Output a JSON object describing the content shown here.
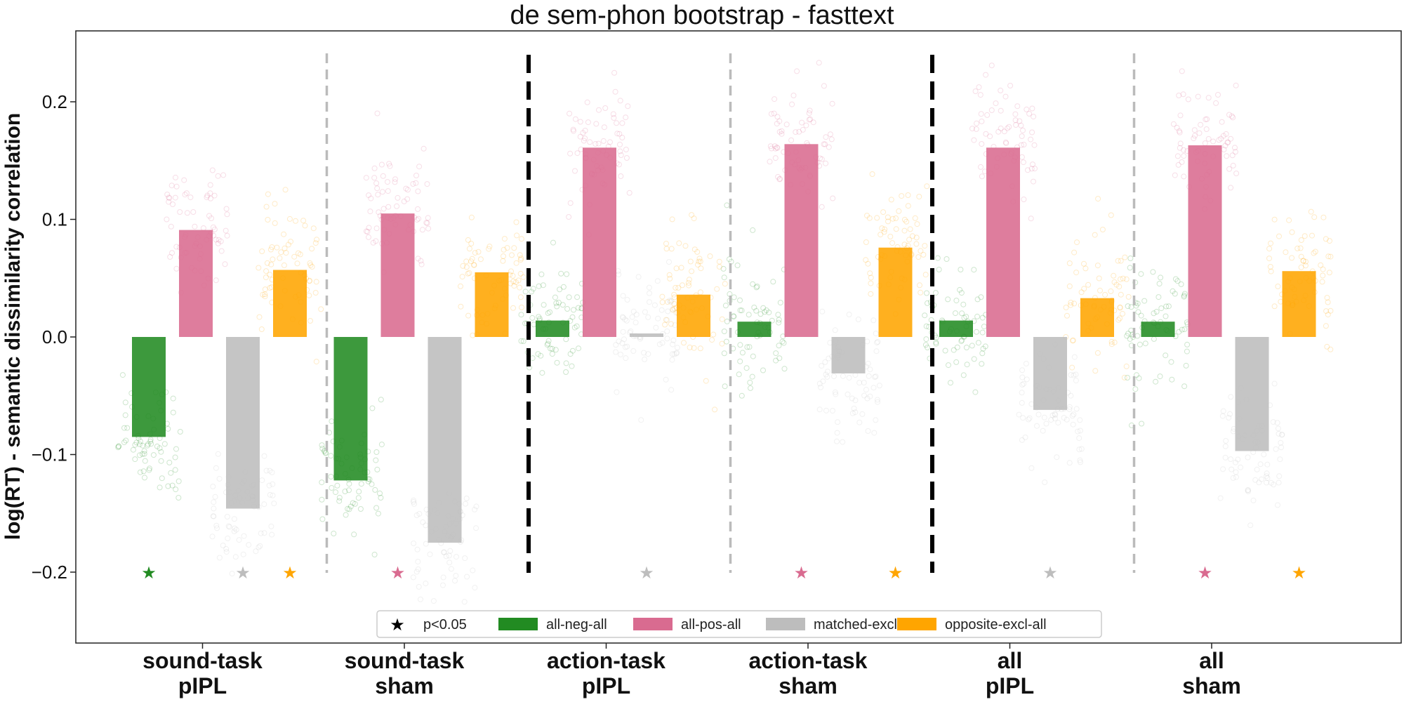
{
  "chart_data": {
    "type": "bar",
    "title": "de sem-phon bootstrap - fasttext",
    "ylabel": "log(RT) - semantic dissimilarity correlation",
    "xlabel": "",
    "ylim": [
      -0.26,
      0.26
    ],
    "yticks": [
      -0.2,
      -0.1,
      0.0,
      0.1,
      0.2
    ],
    "ytick_labels": [
      "−0.2",
      "−0.1",
      "0.0",
      "0.1",
      "0.2"
    ],
    "grid": false,
    "legend_position": "bottom-center",
    "groups": [
      {
        "line1": "sound-task",
        "line2": "pIPL"
      },
      {
        "line1": "sound-task",
        "line2": "sham"
      },
      {
        "line1": "action-task",
        "line2": "pIPL"
      },
      {
        "line1": "action-task",
        "line2": "sham"
      },
      {
        "line1": "all",
        "line2": "pIPL"
      },
      {
        "line1": "all",
        "line2": "sham"
      }
    ],
    "series": [
      {
        "name": "all-neg-all",
        "color": "#228B22",
        "values": [
          -0.085,
          -0.122,
          0.014,
          0.013,
          0.014,
          0.013
        ],
        "significant": [
          true,
          false,
          false,
          false,
          false,
          false
        ]
      },
      {
        "name": "all-pos-all",
        "color": "#D96B90",
        "values": [
          0.091,
          0.105,
          0.161,
          0.164,
          0.161,
          0.163
        ],
        "significant": [
          false,
          true,
          false,
          true,
          false,
          true
        ]
      },
      {
        "name": "matched-excl-all",
        "color": "#BDBDBD",
        "values": [
          -0.146,
          -0.175,
          0.003,
          -0.031,
          -0.062,
          -0.097
        ],
        "significant": [
          true,
          false,
          true,
          false,
          true,
          false
        ]
      },
      {
        "name": "opposite-excl-all",
        "color": "#FFA500",
        "values": [
          0.057,
          0.055,
          0.036,
          0.076,
          0.033,
          0.056
        ],
        "significant": [
          true,
          false,
          false,
          true,
          false,
          true
        ]
      }
    ],
    "significance_marker": {
      "symbol": "★",
      "label": "p<0.05",
      "y": -0.2
    },
    "separators": [
      {
        "after_group": 0,
        "style": "light"
      },
      {
        "after_group": 1,
        "style": "heavy"
      },
      {
        "after_group": 2,
        "style": "light"
      },
      {
        "after_group": 3,
        "style": "heavy"
      },
      {
        "after_group": 4,
        "style": "light"
      }
    ]
  }
}
